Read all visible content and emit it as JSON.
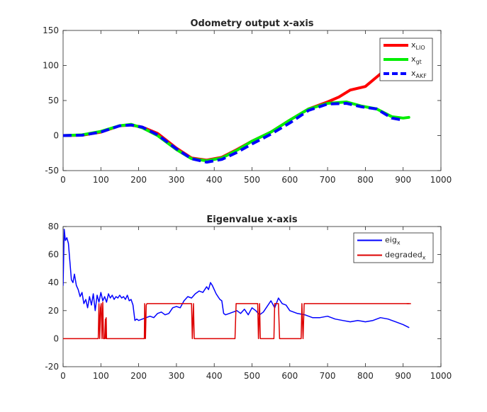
{
  "chart_data": [
    {
      "type": "line",
      "title": "Odometry output x-axis",
      "xlabel": "",
      "ylabel": "",
      "xlim": [
        0,
        1000
      ],
      "ylim": [
        -50,
        150
      ],
      "xticks": [
        0,
        100,
        200,
        300,
        400,
        500,
        600,
        700,
        800,
        900,
        1000
      ],
      "yticks": [
        -50,
        0,
        50,
        100,
        150
      ],
      "grid": false,
      "legend_position": "top-right",
      "series": [
        {
          "name": "x",
          "name_sub": "LIO",
          "color": "#ff0000",
          "style": "solid",
          "x": [
            0,
            50,
            100,
            150,
            180,
            210,
            250,
            300,
            340,
            380,
            420,
            460,
            500,
            550,
            600,
            650,
            700,
            730,
            760,
            800,
            840,
            860
          ],
          "y": [
            0,
            0.5,
            5,
            14,
            15,
            12,
            3,
            -18,
            -32,
            -35,
            -31,
            -20,
            -8,
            5,
            22,
            38,
            48,
            55,
            65,
            70,
            88,
            95
          ]
        },
        {
          "name": "x",
          "name_sub": "gt",
          "color": "#00ee00",
          "style": "solid",
          "x": [
            0,
            50,
            100,
            150,
            180,
            210,
            250,
            300,
            340,
            380,
            420,
            460,
            500,
            550,
            600,
            650,
            700,
            750,
            790,
            830,
            870,
            900,
            915
          ],
          "y": [
            0,
            1,
            6,
            14,
            16,
            11,
            0,
            -20,
            -33,
            -36,
            -32,
            -21,
            -8,
            5,
            22,
            38,
            46,
            48,
            42,
            38,
            27,
            25,
            26
          ]
        },
        {
          "name": "x",
          "name_sub": "AKF",
          "color": "#0000ff",
          "style": "dashed",
          "x": [
            0,
            50,
            100,
            150,
            180,
            210,
            250,
            300,
            340,
            380,
            420,
            460,
            500,
            550,
            600,
            650,
            700,
            750,
            790,
            830,
            870,
            900
          ],
          "y": [
            0,
            0.5,
            5,
            14,
            15,
            12,
            1,
            -19,
            -33,
            -38,
            -34,
            -24,
            -12,
            2,
            18,
            36,
            45,
            46,
            41,
            38,
            25,
            22
          ]
        }
      ]
    },
    {
      "type": "line",
      "title": "Eigenvalue x-axis",
      "xlabel": "",
      "ylabel": "",
      "xlim": [
        0,
        1000
      ],
      "ylim": [
        -20,
        80
      ],
      "xticks": [
        0,
        100,
        200,
        300,
        400,
        500,
        600,
        700,
        800,
        900,
        1000
      ],
      "yticks": [
        -20,
        0,
        20,
        40,
        60,
        80
      ],
      "grid": false,
      "legend_position": "top-right",
      "series": [
        {
          "name": "eig",
          "name_sub": "x",
          "color": "#0000ff",
          "style": "solid",
          "x": [
            0,
            3,
            6,
            10,
            14,
            18,
            22,
            26,
            30,
            35,
            40,
            45,
            50,
            55,
            60,
            65,
            70,
            75,
            80,
            85,
            90,
            95,
            100,
            105,
            110,
            115,
            120,
            125,
            130,
            135,
            140,
            145,
            150,
            155,
            160,
            165,
            170,
            175,
            180,
            185,
            190,
            195,
            200,
            210,
            220,
            230,
            240,
            250,
            260,
            270,
            280,
            290,
            300,
            310,
            320,
            330,
            340,
            350,
            360,
            370,
            380,
            385,
            390,
            395,
            400,
            405,
            410,
            415,
            420,
            425,
            430,
            440,
            450,
            460,
            470,
            480,
            490,
            500,
            510,
            520,
            530,
            540,
            550,
            560,
            570,
            580,
            590,
            600,
            620,
            640,
            660,
            680,
            700,
            720,
            740,
            760,
            780,
            800,
            820,
            840,
            860,
            880,
            900,
            915
          ],
          "y": [
            38,
            78,
            70,
            72,
            68,
            55,
            42,
            40,
            46,
            38,
            35,
            30,
            33,
            25,
            28,
            22,
            30,
            24,
            32,
            20,
            31,
            26,
            33,
            27,
            30,
            26,
            32,
            29,
            31,
            28,
            30,
            29,
            31,
            29,
            30,
            28,
            31,
            27,
            28,
            24,
            13,
            14,
            13,
            14,
            15,
            16,
            15,
            18,
            19,
            17,
            18,
            22,
            23,
            22,
            27,
            30,
            29,
            32,
            34,
            33,
            37,
            35,
            40,
            38,
            35,
            32,
            30,
            28,
            27,
            18,
            17,
            18,
            19,
            20,
            18,
            21,
            17,
            22,
            20,
            17,
            19,
            23,
            27,
            22,
            29,
            25,
            24,
            20,
            18,
            17,
            15,
            15,
            16,
            14,
            13,
            12,
            13,
            12,
            13,
            15,
            14,
            12,
            10,
            8
          ]
        },
        {
          "name": "degraded",
          "name_sub": "x",
          "color": "#dd0000",
          "style": "solid",
          "x": [
            0,
            93,
            95,
            97,
            99,
            101,
            103,
            105,
            107,
            110,
            112,
            113,
            114,
            115,
            116,
            120,
            215,
            216,
            218,
            220,
            222,
            224,
            300,
            340,
            342,
            345,
            347,
            350,
            352,
            455,
            458,
            460,
            462,
            515,
            517,
            520,
            522,
            525,
            555,
            558,
            560,
            562,
            565,
            570,
            573,
            575,
            578,
            630,
            632,
            635,
            638,
            640,
            800,
            915
          ],
          "y": [
            0,
            0,
            25,
            0,
            22,
            25,
            0,
            26,
            0,
            0,
            14,
            0,
            15,
            0,
            0,
            0,
            0,
            25,
            0,
            24,
            25,
            25,
            25,
            25,
            0,
            25,
            0,
            0,
            0,
            0,
            25,
            25,
            25,
            25,
            0,
            25,
            0,
            0,
            0,
            0,
            25,
            25,
            25,
            25,
            0,
            0,
            0,
            0,
            25,
            0,
            25,
            25,
            25,
            25
          ]
        }
      ]
    }
  ]
}
